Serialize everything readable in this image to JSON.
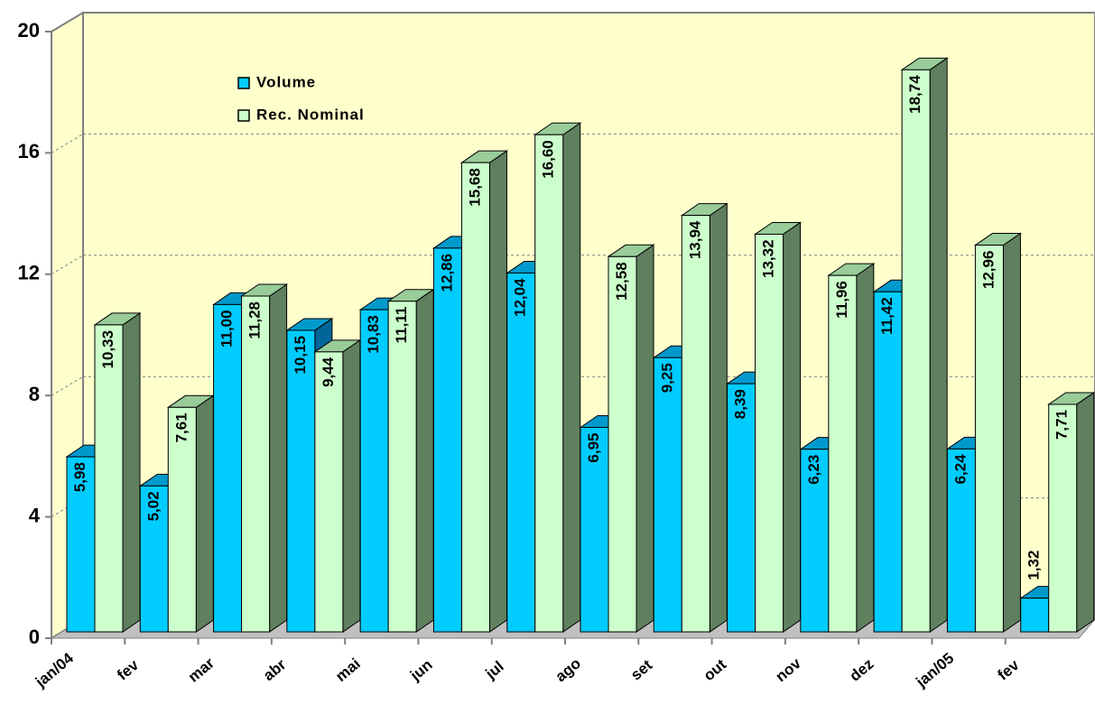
{
  "chart_data": {
    "type": "bar3d",
    "categories": [
      "jan/04",
      "fev",
      "mar",
      "abr",
      "mai",
      "jun",
      "jul",
      "ago",
      "set",
      "out",
      "nov",
      "dez",
      "jan/05",
      "fev"
    ],
    "series": [
      {
        "name": "Volume",
        "color": "#00ccff",
        "values": [
          5.98,
          5.02,
          11.0,
          10.15,
          10.83,
          12.86,
          12.04,
          6.95,
          9.25,
          8.39,
          6.23,
          11.42,
          6.24,
          1.32
        ],
        "value_labels": [
          "5,98",
          "5,02",
          "11,00",
          "10,15",
          "10,83",
          "12,86",
          "12,04",
          "6,95",
          "9,25",
          "8,39",
          "6,23",
          "11,42",
          "6,24",
          "1,32"
        ]
      },
      {
        "name": "Rec. Nominal",
        "color": "#ccffcc",
        "values": [
          10.33,
          7.61,
          11.28,
          9.44,
          11.11,
          15.68,
          16.6,
          12.58,
          13.94,
          13.32,
          11.96,
          18.74,
          12.96,
          7.71
        ],
        "value_labels": [
          "10,33",
          "7,61",
          "11,28",
          "9,44",
          "11,11",
          "15,68",
          "16,60",
          "12,58",
          "13,94",
          "13,32",
          "11,96",
          "18,74",
          "12,96",
          "7,71"
        ]
      }
    ],
    "ylim": [
      0,
      20
    ],
    "yticks": [
      0,
      4,
      8,
      12,
      16,
      20
    ],
    "grid": true,
    "legend": "top-left"
  }
}
